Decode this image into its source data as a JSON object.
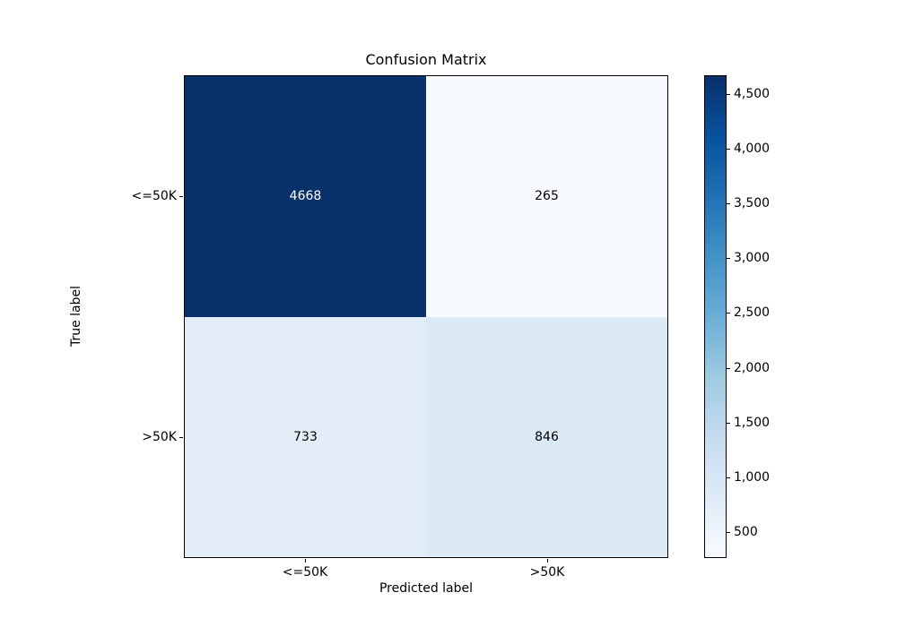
{
  "chart_data": {
    "type": "heatmap",
    "title": "Confusion Matrix",
    "xlabel": "Predicted label",
    "ylabel": "True label",
    "x_tick_labels": [
      "<=50K",
      ">50K"
    ],
    "y_tick_labels": [
      "<=50K",
      ">50K"
    ],
    "matrix": [
      [
        4668,
        265
      ],
      [
        733,
        846
      ]
    ],
    "vmin": 265,
    "vmax": 4668,
    "cells": [
      {
        "true_label": "<=50K",
        "predicted_label": "<=50K",
        "value": 4668,
        "label": "4668",
        "color": "#08306b",
        "text_color": "#ffffff"
      },
      {
        "true_label": "<=50K",
        "predicted_label": ">50K",
        "value": 265,
        "label": "265",
        "color": "#f7fbff",
        "text_color": "#000000"
      },
      {
        "true_label": ">50K",
        "predicted_label": "<=50K",
        "value": 733,
        "label": "733",
        "color": "#e2edf8",
        "text_color": "#000000"
      },
      {
        "true_label": ">50K",
        "predicted_label": ">50K",
        "value": 846,
        "label": "846",
        "color": "#dceaf6",
        "text_color": "#000000"
      }
    ],
    "colorbar": {
      "ticks": [
        {
          "value": 500,
          "label": "500"
        },
        {
          "value": 1000,
          "label": "1,000"
        },
        {
          "value": 1500,
          "label": "1,500"
        },
        {
          "value": 2000,
          "label": "2,000"
        },
        {
          "value": 2500,
          "label": "2,500"
        },
        {
          "value": 3000,
          "label": "3,000"
        },
        {
          "value": 3500,
          "label": "3,500"
        },
        {
          "value": 4000,
          "label": "4,000"
        },
        {
          "value": 4500,
          "label": "4,500"
        }
      ],
      "gradient_stops": [
        "#f7fbff",
        "#deebf7",
        "#c6dbef",
        "#9ecae1",
        "#6baed6",
        "#4292c6",
        "#2171b5",
        "#08519c",
        "#08306b"
      ]
    },
    "layout": {
      "legend_position": "right-colorbar",
      "grid": false
    }
  }
}
